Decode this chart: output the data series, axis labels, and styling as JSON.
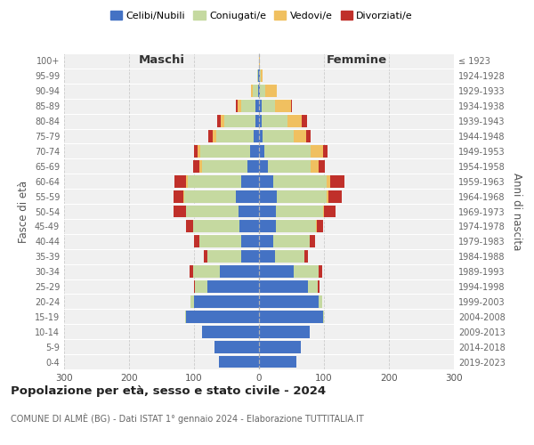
{
  "age_groups": [
    "0-4",
    "5-9",
    "10-14",
    "15-19",
    "20-24",
    "25-29",
    "30-34",
    "35-39",
    "40-44",
    "45-49",
    "50-54",
    "55-59",
    "60-64",
    "65-69",
    "70-74",
    "75-79",
    "80-84",
    "85-89",
    "90-94",
    "95-99",
    "100+"
  ],
  "birth_years": [
    "2019-2023",
    "2014-2018",
    "2009-2013",
    "2004-2008",
    "1999-2003",
    "1994-1998",
    "1989-1993",
    "1984-1988",
    "1979-1983",
    "1974-1978",
    "1969-1973",
    "1964-1968",
    "1959-1963",
    "1954-1958",
    "1949-1953",
    "1944-1948",
    "1939-1943",
    "1934-1938",
    "1929-1933",
    "1924-1928",
    "≤ 1923"
  ],
  "maschi": {
    "celibi": [
      62,
      68,
      88,
      112,
      100,
      80,
      60,
      28,
      28,
      30,
      32,
      35,
      28,
      18,
      14,
      8,
      5,
      5,
      2,
      1,
      0
    ],
    "coniugati": [
      0,
      0,
      0,
      2,
      5,
      18,
      42,
      52,
      64,
      72,
      80,
      80,
      82,
      70,
      76,
      58,
      48,
      22,
      8,
      2,
      0
    ],
    "vedovi": [
      0,
      0,
      0,
      0,
      0,
      0,
      0,
      0,
      0,
      0,
      1,
      1,
      2,
      4,
      5,
      5,
      6,
      6,
      3,
      0,
      0
    ],
    "divorziati": [
      0,
      0,
      0,
      0,
      0,
      2,
      5,
      5,
      8,
      10,
      18,
      16,
      18,
      10,
      5,
      7,
      5,
      2,
      0,
      0,
      0
    ]
  },
  "femmine": {
    "nubili": [
      58,
      65,
      78,
      98,
      92,
      76,
      54,
      24,
      22,
      26,
      26,
      28,
      22,
      14,
      8,
      5,
      4,
      4,
      2,
      1,
      0
    ],
    "coniugate": [
      0,
      0,
      0,
      2,
      5,
      15,
      38,
      46,
      56,
      62,
      72,
      76,
      82,
      66,
      72,
      48,
      40,
      20,
      8,
      2,
      0
    ],
    "vedove": [
      0,
      0,
      0,
      0,
      0,
      0,
      0,
      0,
      0,
      1,
      2,
      3,
      6,
      12,
      18,
      20,
      22,
      25,
      18,
      2,
      1
    ],
    "divorziate": [
      0,
      0,
      0,
      0,
      0,
      2,
      5,
      5,
      8,
      10,
      18,
      20,
      22,
      10,
      8,
      7,
      8,
      2,
      0,
      0,
      0
    ]
  },
  "colors": {
    "celibi_nubili": "#4472c4",
    "coniugati": "#c5d9a0",
    "vedovi": "#f0c060",
    "divorziati": "#c0302a"
  },
  "xlim": 300,
  "title": "Popolazione per età, sesso e stato civile - 2024",
  "subtitle": "COMUNE DI ALMÈ (BG) - Dati ISTAT 1° gennaio 2024 - Elaborazione TUTTITALIA.IT",
  "xlabel_left": "Maschi",
  "xlabel_right": "Femmine",
  "ylabel_left": "Fasce di età",
  "ylabel_right": "Anni di nascita",
  "background_color": "#ffffff",
  "plot_bg": "#f0f0f0",
  "grid_color": "#cccccc"
}
